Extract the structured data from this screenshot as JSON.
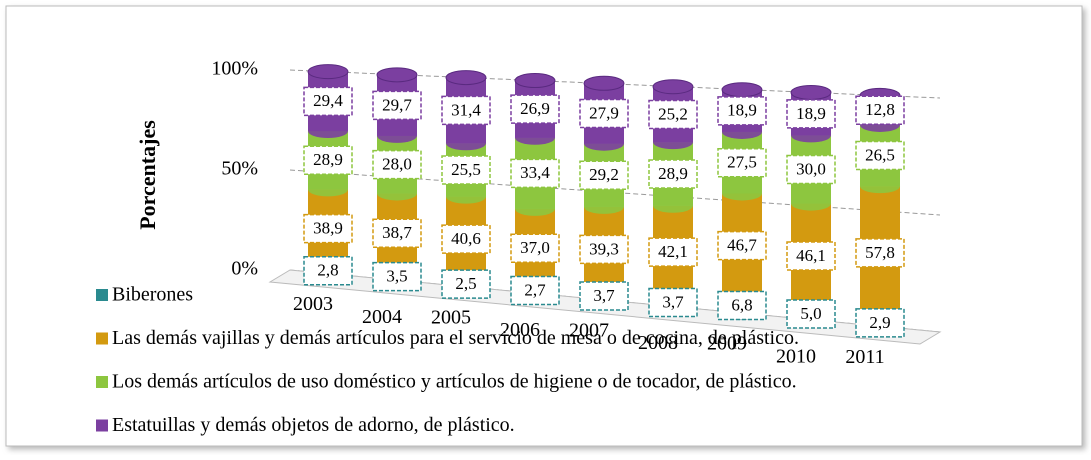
{
  "chart_data": {
    "type": "bar",
    "stacked": true,
    "y_label": "Porcentajes",
    "categories": [
      "2003",
      "2004",
      "2005",
      "2006",
      "2007",
      "2008",
      "2009",
      "2010",
      "2011"
    ],
    "ylim": [
      0,
      100
    ],
    "yticks": [
      {
        "value": 0,
        "label": "0%"
      },
      {
        "value": 50,
        "label": "50%"
      },
      {
        "value": 100,
        "label": "100%"
      }
    ],
    "grid": true,
    "legend": "bottom-left",
    "series": [
      {
        "name": "Biberones",
        "color": "#2a8a8f",
        "values": [
          2.8,
          3.5,
          2.5,
          2.7,
          3.7,
          3.7,
          6.8,
          5.0,
          2.9
        ],
        "value_labels": [
          "2,8",
          "3,5",
          "2,5",
          "2,7",
          "3,7",
          "3,7",
          "6,8",
          "5,0",
          "2,9"
        ]
      },
      {
        "name": "Las demás vajillas y demás artículos para el servicio de mesa o de cocina, de plástico.",
        "color": "#d39a10",
        "values": [
          38.9,
          38.7,
          40.6,
          37.0,
          39.3,
          42.1,
          46.7,
          46.1,
          57.8
        ],
        "value_labels": [
          "38,9",
          "38,7",
          "40,6",
          "37,0",
          "39,3",
          "42,1",
          "46,7",
          "46,1",
          "57,8"
        ]
      },
      {
        "name": "Los demás artículos de uso doméstico y artículos de higiene o de tocador, de plástico.",
        "color": "#8dc63f",
        "values": [
          28.9,
          28.0,
          25.5,
          33.4,
          29.2,
          28.9,
          27.5,
          30.0,
          26.5
        ],
        "value_labels": [
          "28,9",
          "28,0",
          "25,5",
          "33,4",
          "29,2",
          "28,9",
          "27,5",
          "30,0",
          "26,5"
        ]
      },
      {
        "name": "Estatuillas y demás objetos de adorno, de plástico.",
        "color": "#7b3fa0",
        "values": [
          29.4,
          29.7,
          31.4,
          26.9,
          27.9,
          25.2,
          18.9,
          18.9,
          12.8
        ],
        "value_labels": [
          "29,4",
          "29,7",
          "31,4",
          "26,9",
          "27,9",
          "25,2",
          "18,9",
          "18,9",
          "12,8"
        ]
      }
    ]
  }
}
